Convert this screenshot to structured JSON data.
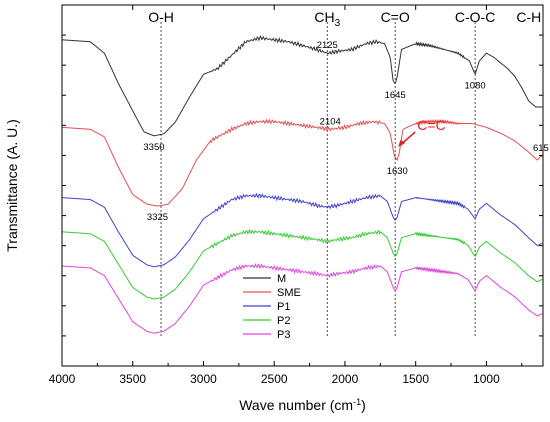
{
  "chart_data": {
    "type": "line",
    "title": "",
    "xlabel": "Wave number (cm",
    "xlabel_sup": "-1",
    "xlabel_end": ")",
    "ylabel": "Transmittance (A. U.)",
    "xlim": [
      4000,
      600
    ],
    "x_reversed": true,
    "x_ticks": [
      "4000",
      "3500",
      "3000",
      "2500",
      "2000",
      "1500",
      "1000"
    ],
    "x_tick_values": [
      4000,
      3500,
      3000,
      2500,
      2000,
      1500,
      1000
    ],
    "y_tick_labels_shown": false,
    "grid": false,
    "legend_position": "bottom-center",
    "series_offsets": [
      0.6,
      0.4,
      0.2,
      0.1,
      0.0
    ],
    "series": [
      {
        "name": "M",
        "color": "#333333",
        "points": [
          [
            4000,
            0.95
          ],
          [
            3800,
            0.94
          ],
          [
            3700,
            0.88
          ],
          [
            3600,
            0.72
          ],
          [
            3500,
            0.58
          ],
          [
            3420,
            0.47
          ],
          [
            3350,
            0.45
          ],
          [
            3280,
            0.46
          ],
          [
            3200,
            0.52
          ],
          [
            3100,
            0.65
          ],
          [
            3000,
            0.77
          ],
          [
            2900,
            0.8
          ],
          [
            2800,
            0.87
          ],
          [
            2700,
            0.94
          ],
          [
            2600,
            0.96
          ],
          [
            2500,
            0.95
          ],
          [
            2400,
            0.94
          ],
          [
            2300,
            0.92
          ],
          [
            2200,
            0.9
          ],
          [
            2125,
            0.88
          ],
          [
            2050,
            0.89
          ],
          [
            1950,
            0.9
          ],
          [
            1850,
            0.93
          ],
          [
            1780,
            0.94
          ],
          [
            1720,
            0.93
          ],
          [
            1680,
            0.86
          ],
          [
            1660,
            0.74
          ],
          [
            1645,
            0.72
          ],
          [
            1630,
            0.76
          ],
          [
            1600,
            0.9
          ],
          [
            1500,
            0.93
          ],
          [
            1400,
            0.92
          ],
          [
            1300,
            0.9
          ],
          [
            1200,
            0.88
          ],
          [
            1120,
            0.84
          ],
          [
            1080,
            0.77
          ],
          [
            1050,
            0.84
          ],
          [
            1000,
            0.88
          ],
          [
            950,
            0.86
          ],
          [
            900,
            0.83
          ],
          [
            850,
            0.8
          ],
          [
            800,
            0.76
          ],
          [
            750,
            0.7
          ],
          [
            700,
            0.63
          ],
          [
            650,
            0.6
          ],
          [
            615,
            0.6
          ]
        ]
      },
      {
        "name": "SME",
        "color": "#e05050",
        "points": [
          [
            4000,
            0.87
          ],
          [
            3800,
            0.86
          ],
          [
            3700,
            0.82
          ],
          [
            3600,
            0.66
          ],
          [
            3500,
            0.52
          ],
          [
            3400,
            0.47
          ],
          [
            3325,
            0.46
          ],
          [
            3250,
            0.47
          ],
          [
            3150,
            0.55
          ],
          [
            3050,
            0.7
          ],
          [
            2950,
            0.8
          ],
          [
            2800,
            0.86
          ],
          [
            2700,
            0.89
          ],
          [
            2600,
            0.9
          ],
          [
            2500,
            0.9
          ],
          [
            2400,
            0.89
          ],
          [
            2300,
            0.88
          ],
          [
            2200,
            0.87
          ],
          [
            2104,
            0.86
          ],
          [
            2000,
            0.87
          ],
          [
            1900,
            0.89
          ],
          [
            1800,
            0.9
          ],
          [
            1720,
            0.89
          ],
          [
            1680,
            0.84
          ],
          [
            1650,
            0.72
          ],
          [
            1630,
            0.7
          ],
          [
            1615,
            0.74
          ],
          [
            1590,
            0.86
          ],
          [
            1500,
            0.89
          ],
          [
            1400,
            0.9
          ],
          [
            1300,
            0.9
          ],
          [
            1200,
            0.89
          ],
          [
            1100,
            0.89
          ],
          [
            1000,
            0.87
          ],
          [
            900,
            0.84
          ],
          [
            800,
            0.8
          ],
          [
            700,
            0.74
          ],
          [
            640,
            0.7
          ],
          [
            615,
            0.72
          ]
        ]
      },
      {
        "name": "P1",
        "color": "#4040cc",
        "points": [
          [
            4000,
            0.88
          ],
          [
            3800,
            0.87
          ],
          [
            3700,
            0.83
          ],
          [
            3600,
            0.7
          ],
          [
            3500,
            0.58
          ],
          [
            3400,
            0.53
          ],
          [
            3350,
            0.52
          ],
          [
            3280,
            0.53
          ],
          [
            3200,
            0.57
          ],
          [
            3100,
            0.66
          ],
          [
            3000,
            0.77
          ],
          [
            2900,
            0.82
          ],
          [
            2800,
            0.87
          ],
          [
            2700,
            0.89
          ],
          [
            2600,
            0.89
          ],
          [
            2500,
            0.88
          ],
          [
            2400,
            0.87
          ],
          [
            2300,
            0.86
          ],
          [
            2200,
            0.84
          ],
          [
            2125,
            0.83
          ],
          [
            2050,
            0.84
          ],
          [
            1950,
            0.86
          ],
          [
            1850,
            0.88
          ],
          [
            1750,
            0.89
          ],
          [
            1700,
            0.86
          ],
          [
            1660,
            0.78
          ],
          [
            1645,
            0.76
          ],
          [
            1630,
            0.78
          ],
          [
            1600,
            0.86
          ],
          [
            1500,
            0.88
          ],
          [
            1400,
            0.87
          ],
          [
            1300,
            0.86
          ],
          [
            1200,
            0.85
          ],
          [
            1130,
            0.82
          ],
          [
            1080,
            0.77
          ],
          [
            1050,
            0.82
          ],
          [
            1000,
            0.85
          ],
          [
            950,
            0.82
          ],
          [
            900,
            0.79
          ],
          [
            800,
            0.74
          ],
          [
            700,
            0.67
          ],
          [
            640,
            0.63
          ],
          [
            615,
            0.64
          ]
        ]
      },
      {
        "name": "P2",
        "color": "#33cc33",
        "points": [
          [
            4000,
            0.89
          ],
          [
            3800,
            0.88
          ],
          [
            3700,
            0.84
          ],
          [
            3600,
            0.72
          ],
          [
            3500,
            0.6
          ],
          [
            3400,
            0.55
          ],
          [
            3350,
            0.54
          ],
          [
            3280,
            0.55
          ],
          [
            3200,
            0.59
          ],
          [
            3100,
            0.68
          ],
          [
            3000,
            0.79
          ],
          [
            2900,
            0.83
          ],
          [
            2800,
            0.87
          ],
          [
            2700,
            0.89
          ],
          [
            2600,
            0.89
          ],
          [
            2500,
            0.88
          ],
          [
            2400,
            0.87
          ],
          [
            2300,
            0.86
          ],
          [
            2200,
            0.85
          ],
          [
            2125,
            0.84
          ],
          [
            2050,
            0.85
          ],
          [
            1950,
            0.86
          ],
          [
            1850,
            0.88
          ],
          [
            1750,
            0.89
          ],
          [
            1700,
            0.86
          ],
          [
            1660,
            0.78
          ],
          [
            1645,
            0.76
          ],
          [
            1630,
            0.78
          ],
          [
            1600,
            0.86
          ],
          [
            1500,
            0.88
          ],
          [
            1400,
            0.87
          ],
          [
            1300,
            0.86
          ],
          [
            1200,
            0.85
          ],
          [
            1130,
            0.82
          ],
          [
            1080,
            0.76
          ],
          [
            1050,
            0.81
          ],
          [
            1000,
            0.84
          ],
          [
            950,
            0.81
          ],
          [
            900,
            0.78
          ],
          [
            800,
            0.73
          ],
          [
            700,
            0.66
          ],
          [
            640,
            0.63
          ],
          [
            615,
            0.64
          ]
        ]
      },
      {
        "name": "P3",
        "color": "#dd44dd",
        "points": [
          [
            4000,
            0.9
          ],
          [
            3800,
            0.89
          ],
          [
            3700,
            0.85
          ],
          [
            3600,
            0.73
          ],
          [
            3500,
            0.61
          ],
          [
            3400,
            0.56
          ],
          [
            3350,
            0.55
          ],
          [
            3280,
            0.56
          ],
          [
            3200,
            0.6
          ],
          [
            3100,
            0.69
          ],
          [
            3000,
            0.8
          ],
          [
            2900,
            0.84
          ],
          [
            2800,
            0.88
          ],
          [
            2700,
            0.9
          ],
          [
            2600,
            0.9
          ],
          [
            2500,
            0.89
          ],
          [
            2400,
            0.88
          ],
          [
            2300,
            0.87
          ],
          [
            2200,
            0.86
          ],
          [
            2125,
            0.85
          ],
          [
            2050,
            0.86
          ],
          [
            1950,
            0.87
          ],
          [
            1850,
            0.89
          ],
          [
            1750,
            0.9
          ],
          [
            1700,
            0.87
          ],
          [
            1660,
            0.79
          ],
          [
            1645,
            0.77
          ],
          [
            1630,
            0.79
          ],
          [
            1600,
            0.87
          ],
          [
            1500,
            0.89
          ],
          [
            1400,
            0.88
          ],
          [
            1300,
            0.87
          ],
          [
            1200,
            0.86
          ],
          [
            1130,
            0.83
          ],
          [
            1080,
            0.77
          ],
          [
            1050,
            0.82
          ],
          [
            1000,
            0.85
          ],
          [
            950,
            0.82
          ],
          [
            900,
            0.79
          ],
          [
            800,
            0.74
          ],
          [
            700,
            0.67
          ],
          [
            640,
            0.64
          ],
          [
            615,
            0.65
          ]
        ]
      }
    ],
    "band_lines": [
      3300,
      2125,
      1645,
      1080
    ],
    "band_labels": [
      {
        "text": "O-H",
        "x": 3300
      },
      {
        "text": "CH",
        "sub": "3",
        "x": 2125
      },
      {
        "text": "C=O",
        "x": 1645
      },
      {
        "text": "C-O-C",
        "x": 1080
      },
      {
        "text": "C-H",
        "x": 700
      }
    ],
    "peak_labels": [
      {
        "text": "3350",
        "x": 3350,
        "series": "M"
      },
      {
        "text": "2125",
        "x": 2125,
        "series": "M",
        "above": true
      },
      {
        "text": "1645",
        "x": 1645,
        "series": "M"
      },
      {
        "text": "1080",
        "x": 1080,
        "series": "M"
      },
      {
        "text": "3325",
        "x": 3325,
        "series": "SME"
      },
      {
        "text": "2104",
        "x": 2104,
        "series": "SME",
        "above": true
      },
      {
        "text": "1630",
        "x": 1630,
        "series": "SME"
      },
      {
        "text": "615",
        "x": 615,
        "series": "SME",
        "above": true
      }
    ],
    "annotation": {
      "text": "C=C",
      "color": "#dd2222",
      "x": 1630,
      "series": "SME"
    }
  }
}
